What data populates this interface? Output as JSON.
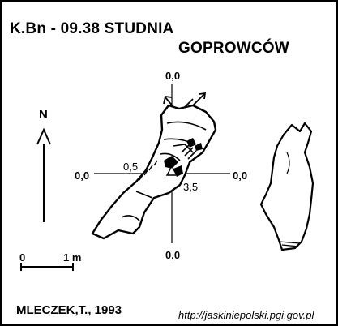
{
  "header": {
    "code": "K.Bn - 09.38  STUDNIA",
    "name_line2": "GOPROWCÓW"
  },
  "footer": {
    "author": "MLECZEK,T., 1993",
    "url": "http://jaskiniepolski.pgi.gov.pl"
  },
  "north_arrow": {
    "label": "N"
  },
  "scale_bar": {
    "start_label": "0",
    "end_label": "1 m"
  },
  "elevations": {
    "top": "0,0",
    "bottom": "0,0",
    "left": "0,0",
    "right": "0,0",
    "entrance": "0,5",
    "depth": "3,5"
  },
  "colors": {
    "ink": "#000000",
    "paper": "#ffffff"
  }
}
